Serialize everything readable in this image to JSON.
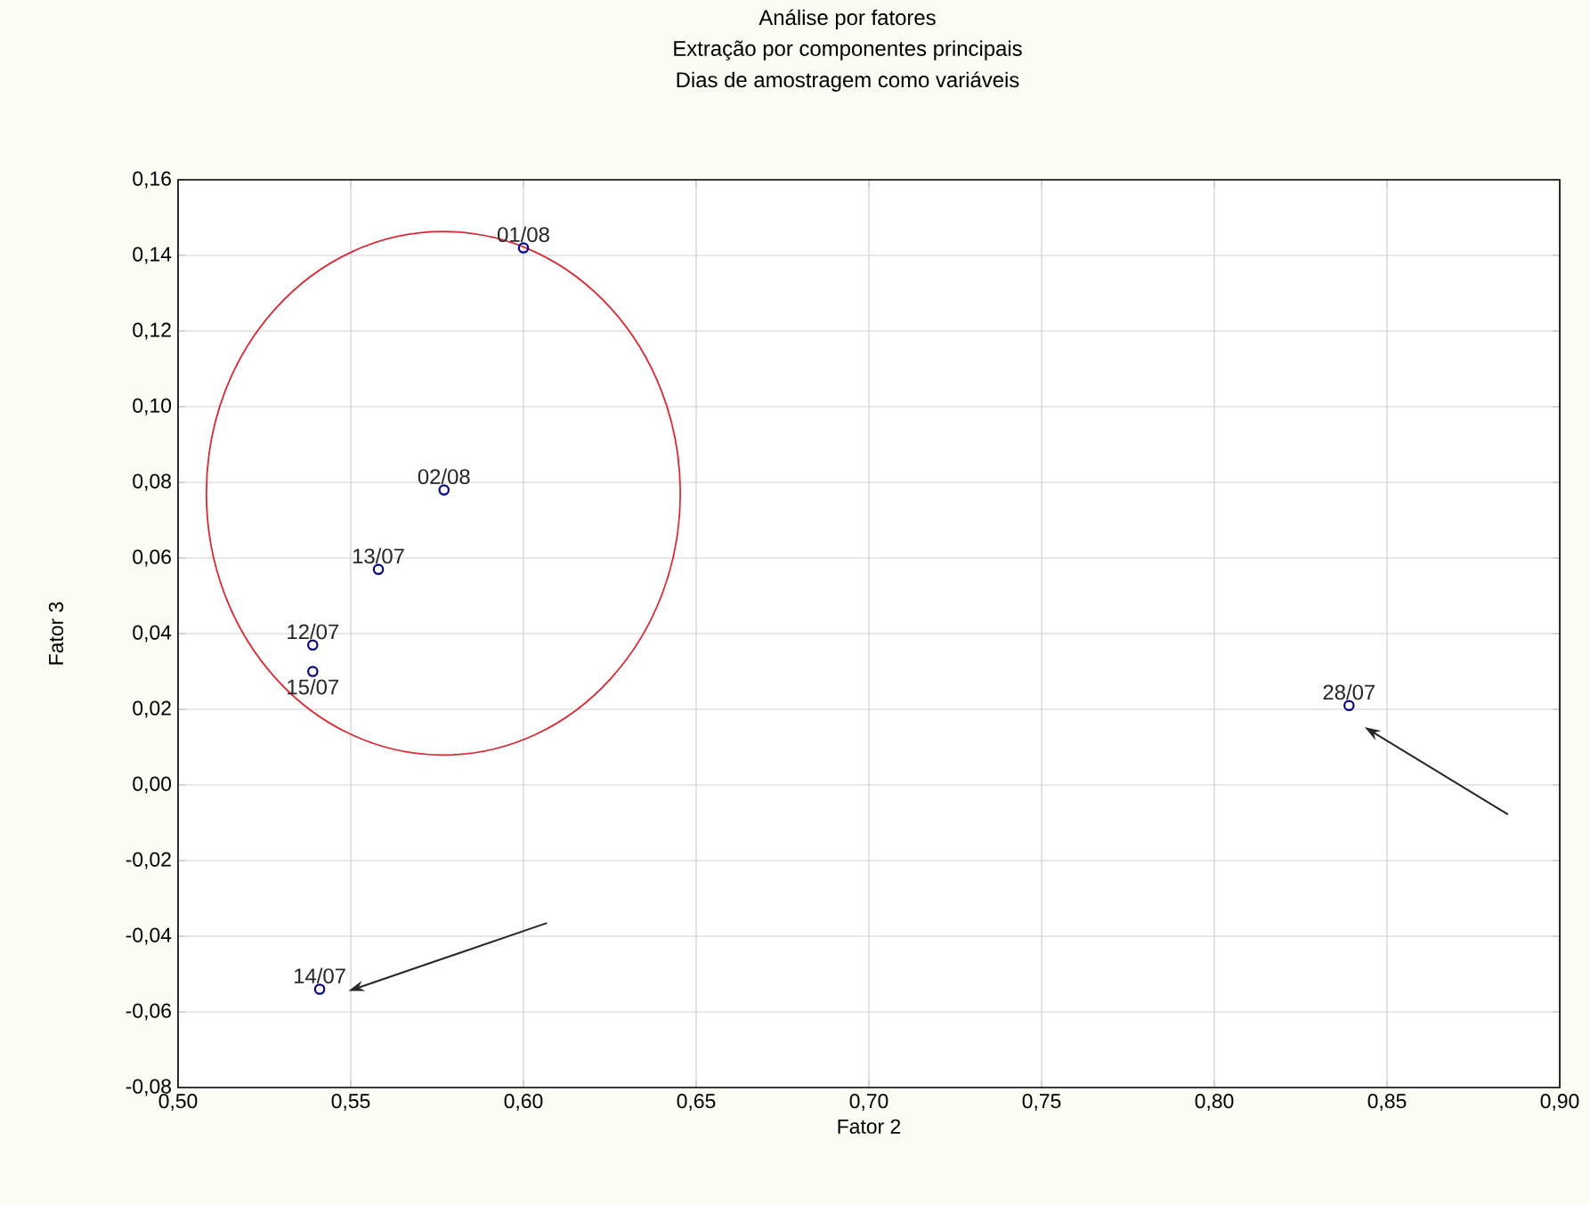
{
  "chart_data": {
    "type": "scatter",
    "title": "Análise por fatores",
    "subtitle": "Extração por componentes principais",
    "xlabel": "Fator 2",
    "ylabel": "Fator 3",
    "annotations": [
      "Dias de amostragem como variáveis",
      {
        "text": "01/08",
        "x": 0.6,
        "y": 0.142
      },
      {
        "text": "02/08",
        "x": 0.577,
        "y": 0.078
      },
      {
        "text": "13/07",
        "x": 0.558,
        "y": 0.057
      },
      {
        "text": "12/07",
        "x": 0.539,
        "y": 0.037
      },
      {
        "text": "15/07",
        "x": 0.539,
        "y": 0.03
      },
      {
        "text": "14/07",
        "x": 0.541,
        "y": -0.054
      },
      {
        "text": "28/07",
        "x": 0.839,
        "y": 0.021
      }
    ],
    "x": [
      0.6,
      0.577,
      0.558,
      0.539,
      0.539,
      0.541,
      0.839
    ],
    "values": [
      0.142,
      0.078,
      0.057,
      0.037,
      0.03,
      -0.054,
      0.021
    ],
    "color": "#00008b",
    "marker": "circle",
    "grid": true,
    "xlim": [
      0.5,
      0.9
    ],
    "xticks": [
      {
        "value": 0.5,
        "label": "0,50"
      },
      {
        "value": 0.55,
        "label": "0,55"
      },
      {
        "value": 0.6,
        "label": "0,60"
      },
      {
        "value": 0.65,
        "label": "0,65"
      },
      {
        "value": 0.7,
        "label": "0,70"
      },
      {
        "value": 0.75,
        "label": "0,75"
      },
      {
        "value": 0.8,
        "label": "0,80"
      },
      {
        "value": 0.85,
        "label": "0,85"
      },
      {
        "value": 0.9,
        "label": "0,90"
      }
    ],
    "ylim": [
      -0.08,
      0.16
    ],
    "yticks": [
      {
        "value": -0.08,
        "label": "-0,08"
      },
      {
        "value": -0.06,
        "label": "-0,06"
      },
      {
        "value": -0.04,
        "label": "-0,04"
      },
      {
        "value": -0.02,
        "label": "-0,02"
      },
      {
        "value": 0,
        "label": "0,00"
      },
      {
        "value": 0.02,
        "label": "0,02"
      },
      {
        "value": 0.04,
        "label": "0,04"
      },
      {
        "value": 0.06,
        "label": "0,06"
      },
      {
        "value": 0.08,
        "label": "0,08"
      },
      {
        "value": 0.1,
        "label": "0,10"
      },
      {
        "value": 0.12,
        "label": "0,12"
      },
      {
        "value": 0.14,
        "label": "0,14"
      },
      {
        "value": 0.16,
        "label": "0,16"
      }
    ]
  }
}
